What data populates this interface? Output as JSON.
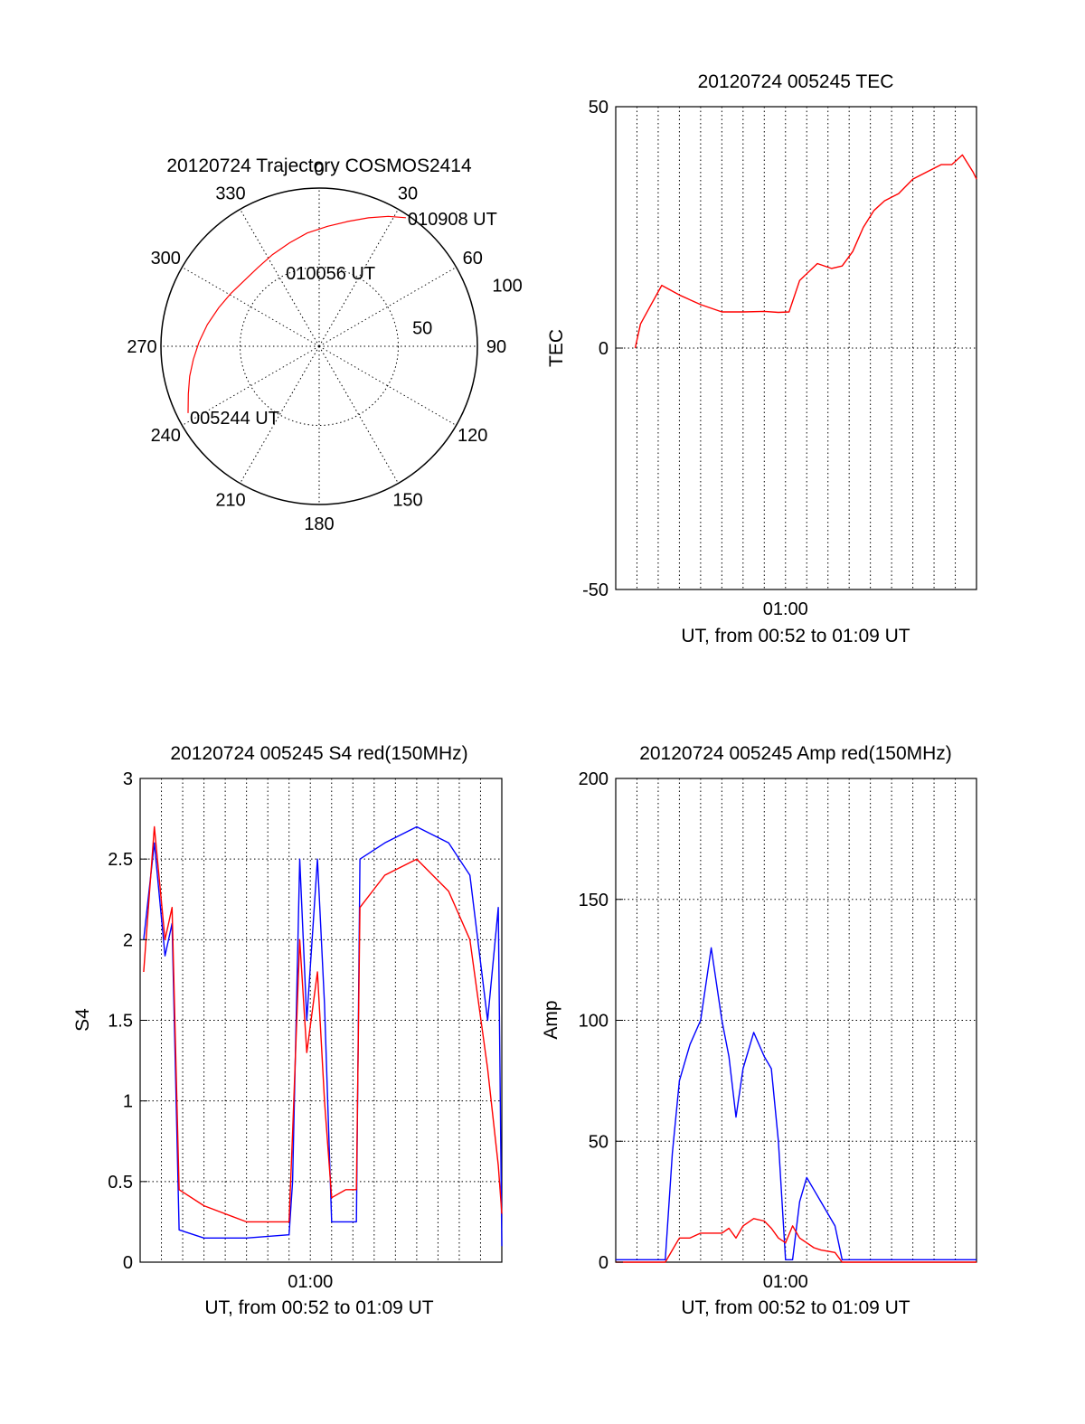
{
  "chart_data": [
    {
      "type": "polar",
      "title": "20120724 Trajectory COSMOS2414",
      "azimuth_ticks": [
        "0",
        "30",
        "60",
        "90",
        "120",
        "150",
        "180",
        "210",
        "240",
        "270",
        "300",
        "330"
      ],
      "radial_ticks": [
        "50",
        "100"
      ],
      "rlim": [
        0,
        100
      ],
      "grid": true,
      "series": [
        {
          "color": "#ff0000",
          "points": [
            {
              "az": 243,
              "r": 93
            },
            {
              "az": 250,
              "r": 88
            },
            {
              "az": 257,
              "r": 84
            },
            {
              "az": 264,
              "r": 80
            },
            {
              "az": 272,
              "r": 76
            },
            {
              "az": 281,
              "r": 72
            },
            {
              "az": 291,
              "r": 68
            },
            {
              "az": 301,
              "r": 65
            },
            {
              "az": 311,
              "r": 63
            },
            {
              "az": 322,
              "r": 63
            },
            {
              "az": 333,
              "r": 65
            },
            {
              "az": 344,
              "r": 68
            },
            {
              "az": 354,
              "r": 72
            },
            {
              "az": 4,
              "r": 76
            },
            {
              "az": 13,
              "r": 81
            },
            {
              "az": 21,
              "r": 87
            },
            {
              "az": 28,
              "r": 93
            },
            {
              "az": 34,
              "r": 98
            }
          ]
        }
      ],
      "annotations": [
        {
          "text": "010908 UT",
          "az": 34,
          "r": 98
        },
        {
          "text": "010056 UT",
          "az": 6,
          "r": 47
        },
        {
          "text": "005244 UT",
          "az": 243,
          "r": 93
        }
      ]
    },
    {
      "type": "line",
      "title": "20120724 005245 TEC",
      "xlabel": "UT, from 00:52 to 01:09 UT",
      "ylabel": "TEC",
      "xlim": [
        "00:52:00",
        "01:09:00"
      ],
      "x_tick_labels": [
        "01:00"
      ],
      "ylim": [
        -50,
        50
      ],
      "y_ticks": [
        "-50",
        "0",
        "50"
      ],
      "grid": true,
      "series": [
        {
          "color": "#ff0000",
          "x": [
            "00:52:55",
            "00:53:10",
            "00:53:40",
            "00:54:10",
            "00:55:00",
            "00:56:00",
            "00:57:00",
            "00:58:00",
            "00:59:00",
            "00:59:40",
            "01:00:10",
            "01:00:40",
            "01:01:30",
            "01:02:10",
            "01:02:40",
            "01:03:10",
            "01:03:40",
            "01:04:10",
            "01:04:40",
            "01:05:20",
            "01:06:00",
            "01:06:40",
            "01:07:20",
            "01:07:50",
            "01:08:20",
            "01:08:50",
            "01:09:00"
          ],
          "y": [
            0,
            5,
            9,
            13,
            11,
            9,
            7.5,
            7.5,
            7.6,
            7.4,
            7.5,
            14,
            17.5,
            16.5,
            17,
            20,
            25,
            28.5,
            30.5,
            32,
            35,
            36.5,
            38,
            38,
            40,
            36.5,
            35
          ]
        }
      ]
    },
    {
      "type": "line",
      "title": "20120724 005245 S4 red(150MHz)",
      "xlabel": "UT, from 00:52 to 01:09 UT",
      "ylabel": "S4",
      "xlim": [
        "00:52:00",
        "01:09:00"
      ],
      "x_tick_labels": [
        "01:00"
      ],
      "ylim": [
        0,
        3
      ],
      "y_ticks": [
        "0",
        "0.5",
        "1",
        "1.5",
        "2",
        "2.5",
        "3"
      ],
      "grid": true,
      "series": [
        {
          "color": "#0000ff",
          "x": [
            "00:52:10",
            "00:52:40",
            "00:53:10",
            "00:53:30",
            "00:53:50",
            "00:55:00",
            "00:57:00",
            "00:59:00",
            "00:59:10",
            "00:59:30",
            "00:59:50",
            "01:00:20",
            "01:00:40",
            "01:01:00",
            "01:01:40",
            "01:02:10",
            "01:02:20",
            "01:03:30",
            "01:05:00",
            "01:06:30",
            "01:07:30",
            "01:08:20",
            "01:08:50",
            "01:09:00"
          ],
          "y": [
            2.0,
            2.6,
            1.9,
            2.1,
            0.2,
            0.15,
            0.15,
            0.17,
            0.5,
            2.5,
            1.5,
            2.5,
            1.6,
            0.25,
            0.25,
            0.25,
            2.5,
            2.6,
            2.7,
            2.6,
            2.4,
            1.5,
            2.2,
            0.1
          ]
        },
        {
          "color": "#ff0000",
          "x": [
            "00:52:10",
            "00:52:40",
            "00:53:10",
            "00:53:30",
            "00:53:50",
            "00:55:00",
            "00:57:00",
            "00:59:00",
            "00:59:10",
            "00:59:30",
            "00:59:50",
            "01:00:20",
            "01:00:40",
            "01:01:00",
            "01:01:40",
            "01:02:10",
            "01:02:20",
            "01:03:30",
            "01:05:00",
            "01:06:30",
            "01:07:30",
            "01:08:20",
            "01:08:50",
            "01:09:00"
          ],
          "y": [
            1.8,
            2.7,
            2.0,
            2.2,
            0.45,
            0.35,
            0.25,
            0.25,
            0.8,
            2.0,
            1.3,
            1.8,
            1.0,
            0.4,
            0.45,
            0.45,
            2.2,
            2.4,
            2.5,
            2.3,
            2.0,
            1.2,
            0.6,
            0.3
          ]
        }
      ]
    },
    {
      "type": "line",
      "title": "20120724 005245 Amp red(150MHz)",
      "xlabel": "UT, from 00:52 to 01:09 UT",
      "ylabel": "Amp",
      "xlim": [
        "00:52:00",
        "01:09:00"
      ],
      "x_tick_labels": [
        "01:00"
      ],
      "ylim": [
        0,
        200
      ],
      "y_ticks": [
        "0",
        "50",
        "100",
        "150",
        "200"
      ],
      "grid": true,
      "series": [
        {
          "color": "#0000ff",
          "x": [
            "00:52:00",
            "00:53:00",
            "00:54:20",
            "00:54:40",
            "00:55:00",
            "00:55:30",
            "00:56:00",
            "00:56:30",
            "00:57:00",
            "00:57:20",
            "00:57:40",
            "00:58:00",
            "00:58:30",
            "00:59:00",
            "00:59:20",
            "00:59:40",
            "01:00:00",
            "01:00:20",
            "01:00:40",
            "01:01:00",
            "01:01:20",
            "01:01:40",
            "01:02:20",
            "01:02:40",
            "01:04:00",
            "01:06:00",
            "01:08:00",
            "01:09:00"
          ],
          "y": [
            1,
            1,
            1,
            45,
            75,
            90,
            100,
            130,
            100,
            85,
            60,
            80,
            95,
            85,
            80,
            50,
            1,
            1,
            25,
            35,
            30,
            25,
            15,
            1,
            1,
            1,
            1,
            1
          ]
        },
        {
          "color": "#ff0000",
          "x": [
            "00:52:00",
            "00:53:00",
            "00:54:20",
            "00:54:40",
            "00:55:00",
            "00:55:30",
            "00:56:00",
            "00:56:30",
            "00:57:00",
            "00:57:20",
            "00:57:40",
            "00:58:00",
            "00:58:30",
            "00:59:00",
            "00:59:20",
            "00:59:40",
            "01:00:00",
            "01:00:20",
            "01:00:40",
            "01:01:00",
            "01:01:20",
            "01:01:40",
            "01:02:20",
            "01:02:40",
            "01:04:00",
            "01:06:00",
            "01:08:00",
            "01:09:00"
          ],
          "y": [
            0,
            0,
            0,
            5,
            10,
            10,
            12,
            12,
            12,
            14,
            10,
            15,
            18,
            17,
            14,
            10,
            8,
            15,
            10,
            8,
            6,
            5,
            4,
            0,
            0,
            0,
            0,
            0
          ]
        }
      ]
    }
  ]
}
